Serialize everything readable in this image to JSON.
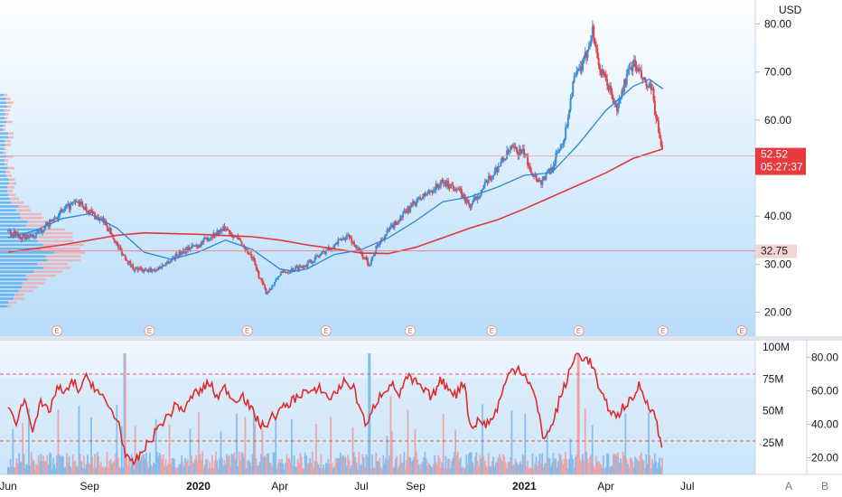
{
  "chart_data": {
    "type": "candlestick",
    "currency": "USD",
    "price_axis": {
      "ticks": [
        "80.00",
        "70.00",
        "60.00",
        "40.00",
        "30.00",
        "20.00"
      ],
      "ylim": [
        15,
        85
      ]
    },
    "last_price": {
      "value": "52.52",
      "countdown": "05:27:37",
      "value_num": 52.52
    },
    "level_marker": {
      "value": "32.75",
      "value_num": 32.75
    },
    "x_axis": {
      "labels": [
        "Jun",
        "Sep",
        "2020",
        "Apr",
        "Jul",
        "Sep",
        "2021",
        "Apr",
        "Jul"
      ],
      "positions": [
        0,
        3,
        7,
        10,
        13,
        15,
        19,
        22,
        25
      ],
      "bold": [
        "2020",
        "2021"
      ],
      "range_months": [
        -0.3,
        27.5
      ]
    },
    "price_close": [
      [
        0,
        37
      ],
      [
        0.5,
        35.5
      ],
      [
        1,
        36
      ],
      [
        1.5,
        38.5
      ],
      [
        2,
        41
      ],
      [
        2.5,
        43
      ],
      [
        3,
        41
      ],
      [
        3.3,
        39.5
      ],
      [
        3.6,
        38.5
      ],
      [
        4,
        34
      ],
      [
        4.3,
        31.5
      ],
      [
        4.6,
        29.2
      ],
      [
        5,
        28.5
      ],
      [
        5.5,
        29
      ],
      [
        6,
        31
      ],
      [
        6.5,
        33
      ],
      [
        7,
        34
      ],
      [
        7.5,
        36
      ],
      [
        8,
        37.5
      ],
      [
        8.5,
        35
      ],
      [
        9,
        31
      ],
      [
        9.2,
        28
      ],
      [
        9.5,
        24
      ],
      [
        9.8,
        26
      ],
      [
        10,
        28
      ],
      [
        10.5,
        29
      ],
      [
        11,
        30
      ],
      [
        11.5,
        32
      ],
      [
        12,
        34
      ],
      [
        12.5,
        36
      ],
      [
        13,
        32
      ],
      [
        13.3,
        30
      ],
      [
        13.6,
        34
      ],
      [
        14,
        37
      ],
      [
        14.5,
        40
      ],
      [
        15,
        43
      ],
      [
        15.5,
        45
      ],
      [
        16,
        47
      ],
      [
        16.5,
        46
      ],
      [
        17,
        42
      ],
      [
        17.5,
        46
      ],
      [
        18,
        50
      ],
      [
        18.5,
        54
      ],
      [
        19,
        53
      ],
      [
        19.3,
        49
      ],
      [
        19.6,
        47
      ],
      [
        20,
        50
      ],
      [
        20.5,
        57
      ],
      [
        20.8,
        68
      ],
      [
        21.2,
        72
      ],
      [
        21.5,
        79
      ],
      [
        21.8,
        70
      ],
      [
        22.1,
        67
      ],
      [
        22.4,
        62
      ],
      [
        22.7,
        68
      ],
      [
        23,
        72
      ],
      [
        23.2,
        70
      ],
      [
        23.5,
        67
      ],
      [
        23.7,
        66
      ],
      [
        24,
        55
      ],
      [
        24.1,
        52.52
      ]
    ],
    "ma_fast": [
      [
        0,
        35.5
      ],
      [
        1,
        37
      ],
      [
        2,
        39.5
      ],
      [
        3,
        40.5
      ],
      [
        4,
        37.5
      ],
      [
        5,
        32.5
      ],
      [
        6,
        31
      ],
      [
        7,
        32.5
      ],
      [
        8,
        35
      ],
      [
        9,
        33
      ],
      [
        10,
        29
      ],
      [
        10.5,
        28.5
      ],
      [
        11,
        29
      ],
      [
        12,
        32
      ],
      [
        13,
        33
      ],
      [
        14,
        35.5
      ],
      [
        15,
        39
      ],
      [
        16,
        43
      ],
      [
        17,
        44
      ],
      [
        18,
        46
      ],
      [
        19,
        48.5
      ],
      [
        20,
        49
      ],
      [
        21,
        55
      ],
      [
        22,
        62
      ],
      [
        23,
        67
      ],
      [
        23.6,
        68.5
      ],
      [
        24.1,
        66.5
      ]
    ],
    "ma_slow": [
      [
        0,
        32.5
      ],
      [
        2,
        34
      ],
      [
        4,
        36
      ],
      [
        5,
        36.5
      ],
      [
        7,
        36.2
      ],
      [
        9,
        35.7
      ],
      [
        10,
        35
      ],
      [
        11,
        34
      ],
      [
        12,
        33.2
      ],
      [
        13,
        32.3
      ],
      [
        14,
        32.2
      ],
      [
        15,
        33.5
      ],
      [
        16,
        35.5
      ],
      [
        17,
        37.5
      ],
      [
        18,
        39.2
      ],
      [
        19,
        41.5
      ],
      [
        20,
        44
      ],
      [
        21,
        46.5
      ],
      [
        22,
        49
      ],
      [
        23,
        52
      ],
      [
        24.1,
        54
      ]
    ],
    "earnings_markers": [
      1.8,
      5.2,
      8.8,
      11.7,
      14.8,
      17.8,
      21.0,
      24.1,
      27.0
    ],
    "earnings_symbol": "E",
    "volume_axis": {
      "labels": [
        "100M",
        "75M",
        "50M",
        "25M"
      ],
      "values": [
        100,
        75,
        50,
        25
      ],
      "ylim": [
        0,
        105
      ]
    },
    "oscillator_axis": {
      "labels": [
        "80.00",
        "60.00",
        "40.00",
        "20.00"
      ],
      "values": [
        80,
        60,
        40,
        20
      ],
      "ylim": [
        10,
        90
      ],
      "upper_band": 70,
      "lower_band": 30
    },
    "oscillator": [
      [
        0,
        48
      ],
      [
        0.3,
        42
      ],
      [
        0.6,
        55
      ],
      [
        0.9,
        38
      ],
      [
        1.2,
        52
      ],
      [
        1.5,
        47
      ],
      [
        1.8,
        62
      ],
      [
        2.1,
        58
      ],
      [
        2.4,
        66
      ],
      [
        2.6,
        60
      ],
      [
        2.9,
        68
      ],
      [
        3.2,
        62
      ],
      [
        3.5,
        55
      ],
      [
        3.8,
        48
      ],
      [
        4.1,
        40
      ],
      [
        4.3,
        22
      ],
      [
        4.5,
        16
      ],
      [
        4.7,
        18
      ],
      [
        5,
        25
      ],
      [
        5.3,
        32
      ],
      [
        5.6,
        40
      ],
      [
        5.9,
        45
      ],
      [
        6.2,
        52
      ],
      [
        6.5,
        48
      ],
      [
        6.8,
        58
      ],
      [
        7.1,
        60
      ],
      [
        7.4,
        65
      ],
      [
        7.7,
        56
      ],
      [
        8,
        62
      ],
      [
        8.3,
        54
      ],
      [
        8.6,
        58
      ],
      [
        8.9,
        50
      ],
      [
        9.2,
        42
      ],
      [
        9.4,
        38
      ],
      [
        9.7,
        44
      ],
      [
        10,
        48
      ],
      [
        10.3,
        52
      ],
      [
        10.6,
        56
      ],
      [
        10.9,
        60
      ],
      [
        11.2,
        58
      ],
      [
        11.5,
        62
      ],
      [
        11.8,
        55
      ],
      [
        12.1,
        60
      ],
      [
        12.4,
        66
      ],
      [
        12.7,
        62
      ],
      [
        13,
        48
      ],
      [
        13.2,
        38
      ],
      [
        13.5,
        52
      ],
      [
        13.8,
        60
      ],
      [
        14.1,
        64
      ],
      [
        14.4,
        58
      ],
      [
        14.7,
        68
      ],
      [
        15,
        65
      ],
      [
        15.3,
        60
      ],
      [
        15.6,
        56
      ],
      [
        15.9,
        66
      ],
      [
        16.2,
        62
      ],
      [
        16.5,
        58
      ],
      [
        16.8,
        66
      ],
      [
        17,
        38
      ],
      [
        17.3,
        42
      ],
      [
        17.6,
        40
      ],
      [
        17.9,
        45
      ],
      [
        18.2,
        60
      ],
      [
        18.5,
        72
      ],
      [
        18.8,
        74
      ],
      [
        19.1,
        68
      ],
      [
        19.4,
        56
      ],
      [
        19.7,
        32
      ],
      [
        20,
        38
      ],
      [
        20.3,
        55
      ],
      [
        20.6,
        68
      ],
      [
        20.9,
        82
      ],
      [
        21.2,
        80
      ],
      [
        21.5,
        76
      ],
      [
        21.8,
        58
      ],
      [
        22.1,
        50
      ],
      [
        22.4,
        44
      ],
      [
        22.7,
        52
      ],
      [
        23,
        54
      ],
      [
        23.2,
        64
      ],
      [
        23.5,
        54
      ],
      [
        23.8,
        46
      ],
      [
        24,
        30
      ],
      [
        24.1,
        26
      ]
    ]
  }
}
